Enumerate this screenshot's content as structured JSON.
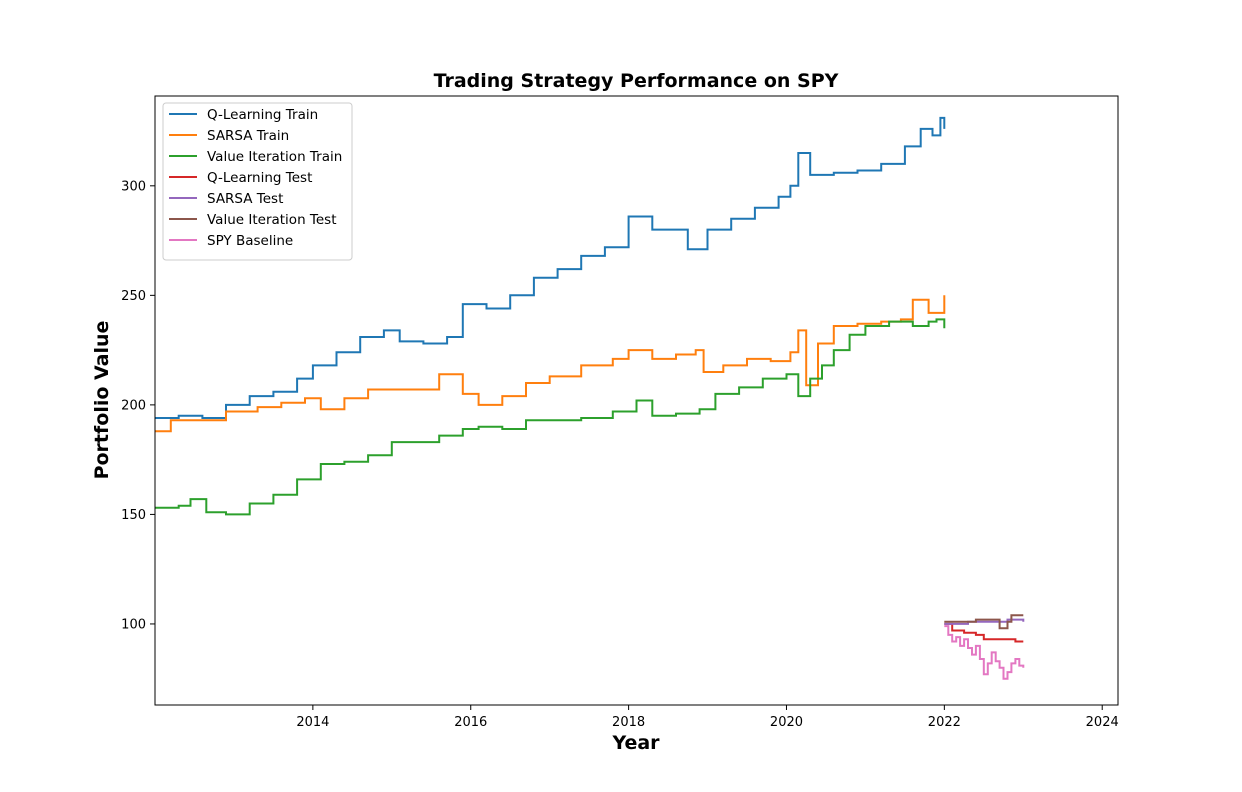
{
  "chart_data": {
    "type": "line",
    "title": "Trading Strategy Performance on SPY",
    "xlabel": "Year",
    "ylabel": "Portfolio Value",
    "xlim": [
      2012.0,
      2024.2
    ],
    "ylim": [
      63,
      341
    ],
    "x_ticks": [
      2014,
      2016,
      2018,
      2020,
      2022,
      2024
    ],
    "x_tick_labels": [
      "2014",
      "2016",
      "2018",
      "2020",
      "2022",
      "2024"
    ],
    "y_ticks": [
      100,
      150,
      200,
      250,
      300
    ],
    "y_tick_labels": [
      "100",
      "150",
      "200",
      "250",
      "300"
    ],
    "grid": false,
    "legend_position": "top-left",
    "series": [
      {
        "name": "Q-Learning Train",
        "color": "#1f77b4",
        "points": [
          [
            2012.0,
            194
          ],
          [
            2012.3,
            195
          ],
          [
            2012.6,
            194
          ],
          [
            2012.9,
            200
          ],
          [
            2013.2,
            204
          ],
          [
            2013.5,
            206
          ],
          [
            2013.8,
            212
          ],
          [
            2014.0,
            218
          ],
          [
            2014.3,
            224
          ],
          [
            2014.6,
            231
          ],
          [
            2014.9,
            234
          ],
          [
            2015.1,
            229
          ],
          [
            2015.4,
            228
          ],
          [
            2015.7,
            231
          ],
          [
            2015.9,
            246
          ],
          [
            2016.2,
            244
          ],
          [
            2016.5,
            250
          ],
          [
            2016.8,
            258
          ],
          [
            2017.1,
            262
          ],
          [
            2017.4,
            268
          ],
          [
            2017.7,
            272
          ],
          [
            2018.0,
            286
          ],
          [
            2018.3,
            280
          ],
          [
            2018.6,
            280
          ],
          [
            2018.75,
            271
          ],
          [
            2019.0,
            280
          ],
          [
            2019.3,
            285
          ],
          [
            2019.6,
            290
          ],
          [
            2019.9,
            295
          ],
          [
            2020.05,
            300
          ],
          [
            2020.15,
            315
          ],
          [
            2020.3,
            305
          ],
          [
            2020.6,
            306
          ],
          [
            2020.9,
            307
          ],
          [
            2021.2,
            310
          ],
          [
            2021.5,
            318
          ],
          [
            2021.7,
            326
          ],
          [
            2021.85,
            323
          ],
          [
            2021.95,
            331
          ],
          [
            2022.0,
            326
          ]
        ]
      },
      {
        "name": "SARSA Train",
        "color": "#ff7f0e",
        "points": [
          [
            2012.0,
            188
          ],
          [
            2012.2,
            193
          ],
          [
            2012.6,
            193
          ],
          [
            2012.9,
            197
          ],
          [
            2013.3,
            199
          ],
          [
            2013.6,
            201
          ],
          [
            2013.9,
            203
          ],
          [
            2014.1,
            198
          ],
          [
            2014.4,
            203
          ],
          [
            2014.7,
            207
          ],
          [
            2015.0,
            207
          ],
          [
            2015.3,
            207
          ],
          [
            2015.6,
            214
          ],
          [
            2015.9,
            205
          ],
          [
            2016.1,
            200
          ],
          [
            2016.4,
            204
          ],
          [
            2016.7,
            210
          ],
          [
            2017.0,
            213
          ],
          [
            2017.4,
            218
          ],
          [
            2017.8,
            221
          ],
          [
            2018.0,
            225
          ],
          [
            2018.3,
            221
          ],
          [
            2018.6,
            223
          ],
          [
            2018.85,
            225
          ],
          [
            2018.95,
            215
          ],
          [
            2019.2,
            218
          ],
          [
            2019.5,
            221
          ],
          [
            2019.8,
            220
          ],
          [
            2020.05,
            224
          ],
          [
            2020.15,
            234
          ],
          [
            2020.25,
            209
          ],
          [
            2020.4,
            228
          ],
          [
            2020.6,
            236
          ],
          [
            2020.9,
            237
          ],
          [
            2021.2,
            238
          ],
          [
            2021.45,
            239
          ],
          [
            2021.6,
            248
          ],
          [
            2021.8,
            242
          ],
          [
            2022.0,
            250
          ]
        ]
      },
      {
        "name": "Value Iteration Train",
        "color": "#2ca02c",
        "points": [
          [
            2012.0,
            153
          ],
          [
            2012.3,
            154
          ],
          [
            2012.45,
            157
          ],
          [
            2012.65,
            151
          ],
          [
            2012.9,
            150
          ],
          [
            2013.2,
            155
          ],
          [
            2013.5,
            159
          ],
          [
            2013.8,
            166
          ],
          [
            2014.1,
            173
          ],
          [
            2014.4,
            174
          ],
          [
            2014.7,
            177
          ],
          [
            2015.0,
            183
          ],
          [
            2015.3,
            183
          ],
          [
            2015.6,
            186
          ],
          [
            2015.9,
            189
          ],
          [
            2016.1,
            190
          ],
          [
            2016.4,
            189
          ],
          [
            2016.7,
            193
          ],
          [
            2017.0,
            193
          ],
          [
            2017.4,
            194
          ],
          [
            2017.8,
            197
          ],
          [
            2018.1,
            202
          ],
          [
            2018.3,
            195
          ],
          [
            2018.6,
            196
          ],
          [
            2018.9,
            198
          ],
          [
            2019.1,
            205
          ],
          [
            2019.4,
            208
          ],
          [
            2019.7,
            212
          ],
          [
            2020.0,
            214
          ],
          [
            2020.15,
            204
          ],
          [
            2020.3,
            212
          ],
          [
            2020.45,
            218
          ],
          [
            2020.6,
            225
          ],
          [
            2020.8,
            232
          ],
          [
            2021.0,
            236
          ],
          [
            2021.3,
            238
          ],
          [
            2021.6,
            236
          ],
          [
            2021.8,
            238
          ],
          [
            2021.9,
            239
          ],
          [
            2022.0,
            235
          ]
        ]
      },
      {
        "name": "Q-Learning Test",
        "color": "#d62728",
        "points": [
          [
            2022.0,
            100
          ],
          [
            2022.1,
            97
          ],
          [
            2022.25,
            96
          ],
          [
            2022.4,
            95
          ],
          [
            2022.5,
            93
          ],
          [
            2022.7,
            93
          ],
          [
            2022.9,
            92
          ],
          [
            2023.0,
            92
          ]
        ]
      },
      {
        "name": "SARSA Test",
        "color": "#9467bd",
        "points": [
          [
            2022.0,
            100
          ],
          [
            2022.3,
            101
          ],
          [
            2022.6,
            101
          ],
          [
            2022.8,
            102
          ],
          [
            2023.0,
            101
          ]
        ]
      },
      {
        "name": "Value Iteration Test",
        "color": "#8c564b",
        "points": [
          [
            2022.0,
            101
          ],
          [
            2022.2,
            101
          ],
          [
            2022.4,
            102
          ],
          [
            2022.6,
            102
          ],
          [
            2022.7,
            98
          ],
          [
            2022.8,
            101
          ],
          [
            2022.85,
            104
          ],
          [
            2023.0,
            104
          ]
        ]
      },
      {
        "name": "SPY Baseline",
        "color": "#e377c2",
        "points": [
          [
            2022.0,
            99
          ],
          [
            2022.05,
            95
          ],
          [
            2022.1,
            92
          ],
          [
            2022.15,
            94
          ],
          [
            2022.2,
            90
          ],
          [
            2022.25,
            93
          ],
          [
            2022.3,
            89
          ],
          [
            2022.35,
            86
          ],
          [
            2022.4,
            90
          ],
          [
            2022.45,
            84
          ],
          [
            2022.5,
            77
          ],
          [
            2022.55,
            82
          ],
          [
            2022.6,
            87
          ],
          [
            2022.65,
            83
          ],
          [
            2022.7,
            80
          ],
          [
            2022.75,
            75
          ],
          [
            2022.8,
            78
          ],
          [
            2022.85,
            82
          ],
          [
            2022.9,
            84
          ],
          [
            2022.95,
            81
          ],
          [
            2023.0,
            80
          ]
        ]
      }
    ]
  }
}
